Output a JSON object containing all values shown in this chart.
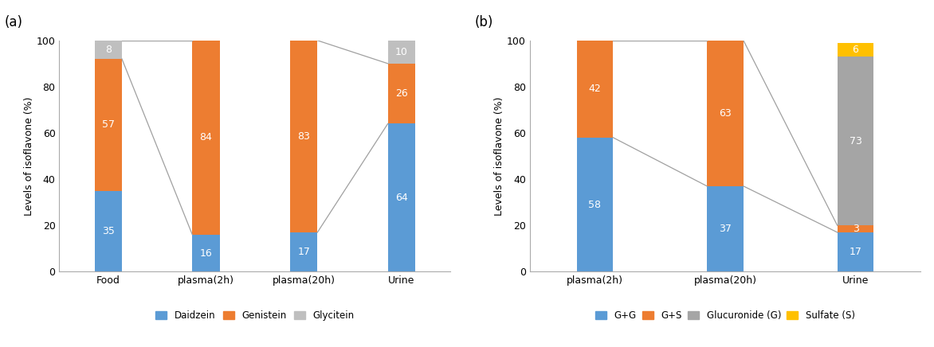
{
  "chart_a": {
    "categories": [
      "Food",
      "plasma(2h)",
      "plasma(20h)",
      "Urine"
    ],
    "daidzein": [
      35,
      16,
      17,
      64
    ],
    "genistein": [
      57,
      84,
      83,
      26
    ],
    "glycitein": [
      8,
      0,
      0,
      10
    ],
    "colors": {
      "daidzein": "#5B9BD5",
      "genistein": "#ED7D31",
      "glycitein": "#BFBFBF"
    },
    "ylabel": "Levels of isoflavone (%)",
    "ylim": [
      0,
      100
    ],
    "label_a": "(a)",
    "line_color": "#A0A0A0"
  },
  "chart_b": {
    "categories": [
      "plasma(2h)",
      "plasma(20h)",
      "Urine"
    ],
    "gg": [
      58,
      37,
      17
    ],
    "gs": [
      42,
      63,
      3
    ],
    "glucuronide": [
      0,
      0,
      73
    ],
    "sulfate": [
      0,
      0,
      6
    ],
    "colors": {
      "gg": "#5B9BD5",
      "gs": "#ED7D31",
      "glucuronide": "#A5A5A5",
      "sulfate": "#FFC000"
    },
    "ylabel": "Levels of isoflavone (%)",
    "ylim": [
      0,
      100
    ],
    "label_b": "(b)",
    "line_color": "#A0A0A0"
  },
  "bar_width": 0.28,
  "fig_bg": "#FFFFFF",
  "axes_bg": "#FFFFFF"
}
